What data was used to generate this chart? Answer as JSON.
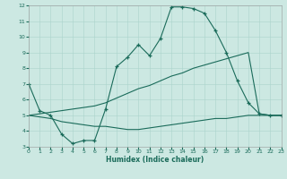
{
  "xlabel": "Humidex (Indice chaleur)",
  "bg_color": "#cce8e2",
  "grid_color": "#aad4cc",
  "line_color": "#1a6b5a",
  "xlim": [
    0,
    23
  ],
  "ylim": [
    3,
    12
  ],
  "xticks": [
    0,
    1,
    2,
    3,
    4,
    5,
    6,
    7,
    8,
    9,
    10,
    11,
    12,
    13,
    14,
    15,
    16,
    17,
    18,
    19,
    20,
    21,
    22,
    23
  ],
  "yticks": [
    3,
    4,
    5,
    6,
    7,
    8,
    9,
    10,
    11,
    12
  ],
  "line1_x": [
    0,
    1,
    2,
    3,
    4,
    5,
    6,
    7,
    8,
    9,
    10,
    11,
    12,
    13,
    14,
    15,
    16,
    17,
    18,
    19,
    20,
    21,
    22,
    23
  ],
  "line1_y": [
    7.0,
    5.3,
    5.0,
    3.8,
    3.2,
    3.4,
    3.4,
    5.4,
    8.1,
    8.7,
    9.5,
    8.8,
    9.9,
    11.9,
    11.9,
    11.8,
    11.5,
    10.4,
    9.0,
    7.2,
    5.8,
    5.1,
    5.0,
    5.0
  ],
  "line2_x": [
    0,
    1,
    2,
    3,
    4,
    5,
    6,
    7,
    8,
    9,
    10,
    11,
    12,
    13,
    14,
    15,
    16,
    17,
    18,
    19,
    20,
    21,
    22,
    23
  ],
  "line2_y": [
    5.0,
    5.1,
    5.2,
    5.3,
    5.4,
    5.5,
    5.6,
    5.8,
    6.1,
    6.4,
    6.7,
    6.9,
    7.2,
    7.5,
    7.7,
    8.0,
    8.2,
    8.4,
    8.6,
    8.8,
    9.0,
    5.1,
    5.0,
    5.0
  ],
  "line3_x": [
    0,
    1,
    2,
    3,
    4,
    5,
    6,
    7,
    8,
    9,
    10,
    11,
    12,
    13,
    14,
    15,
    16,
    17,
    18,
    19,
    20,
    21,
    22,
    23
  ],
  "line3_y": [
    5.0,
    4.9,
    4.8,
    4.6,
    4.5,
    4.4,
    4.3,
    4.3,
    4.2,
    4.1,
    4.1,
    4.2,
    4.3,
    4.4,
    4.5,
    4.6,
    4.7,
    4.8,
    4.8,
    4.9,
    5.0,
    5.0,
    5.0,
    5.0
  ]
}
